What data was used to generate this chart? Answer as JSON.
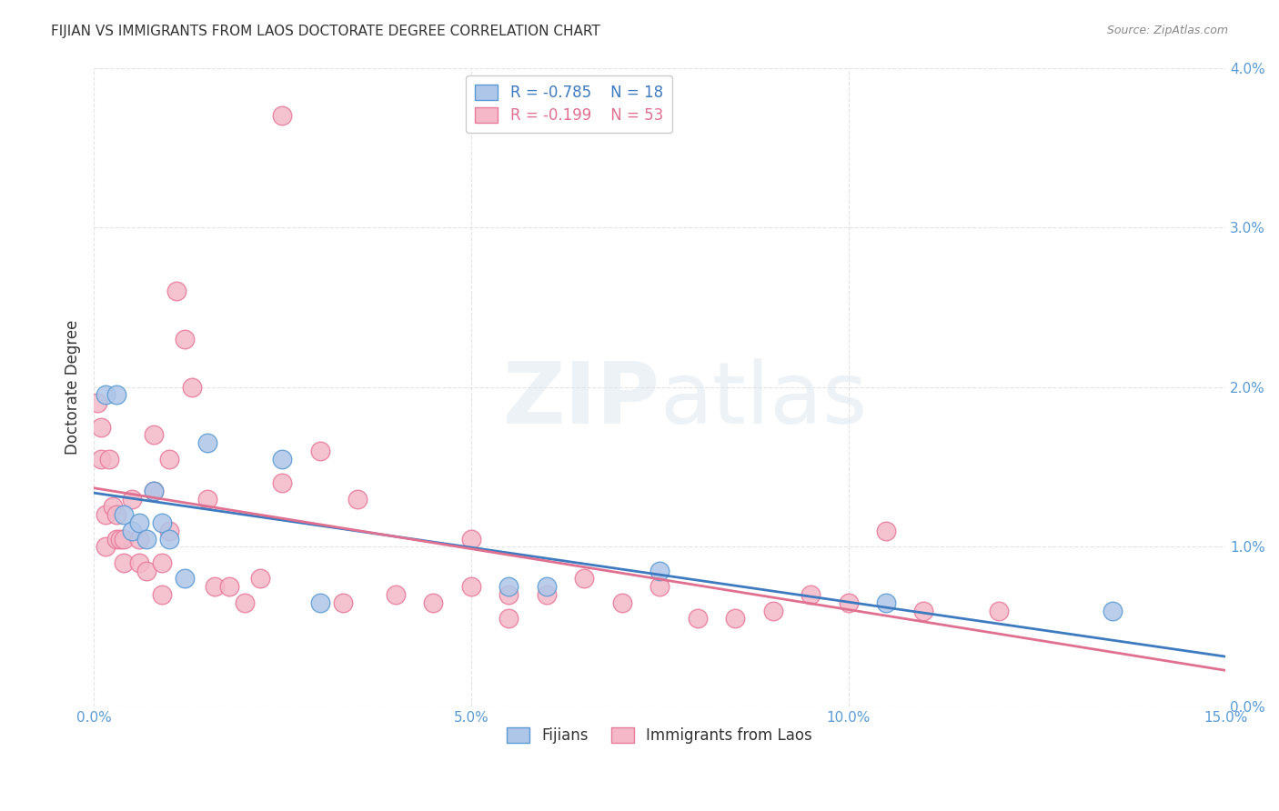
{
  "title": "FIJIAN VS IMMIGRANTS FROM LAOS DOCTORATE DEGREE CORRELATION CHART",
  "source": "Source: ZipAtlas.com",
  "ylabel": "Doctorate Degree",
  "xlabel_vals": [
    0.0,
    5.0,
    10.0,
    15.0
  ],
  "ylabel_vals": [
    0.0,
    1.0,
    2.0,
    3.0,
    4.0
  ],
  "xlim": [
    0.0,
    15.0
  ],
  "ylim": [
    0.0,
    4.0
  ],
  "fijian_color": "#aec6e8",
  "laos_color": "#f4b8c8",
  "fijian_edge": "#5b9bd5",
  "laos_edge": "#e87a9a",
  "fijian_R": -0.785,
  "fijian_N": 18,
  "laos_R": -0.199,
  "laos_N": 53,
  "background_color": "#ffffff",
  "grid_color": "#dddddd",
  "fijian_line_color": "#3d7abf",
  "laos_line_color": "#e07090",
  "fijian_x": [
    0.15,
    0.3,
    0.4,
    0.5,
    0.6,
    0.7,
    0.8,
    0.9,
    1.0,
    1.2,
    1.5,
    2.5,
    3.0,
    5.5,
    6.0,
    7.5,
    10.5,
    13.5
  ],
  "fijian_y": [
    1.95,
    1.95,
    1.2,
    1.1,
    1.15,
    1.05,
    1.35,
    1.15,
    1.05,
    0.8,
    1.65,
    1.55,
    0.65,
    0.75,
    0.75,
    0.85,
    0.65,
    0.6
  ],
  "laos_x": [
    0.05,
    0.1,
    0.1,
    0.15,
    0.15,
    0.2,
    0.25,
    0.3,
    0.3,
    0.35,
    0.4,
    0.4,
    0.5,
    0.6,
    0.6,
    0.7,
    0.8,
    0.8,
    0.9,
    0.9,
    1.0,
    1.0,
    1.1,
    1.2,
    1.3,
    1.5,
    1.6,
    1.8,
    2.0,
    2.2,
    2.5,
    2.5,
    3.0,
    3.3,
    3.5,
    4.0,
    4.5,
    5.0,
    5.0,
    5.5,
    5.5,
    6.0,
    6.5,
    7.0,
    7.5,
    8.0,
    8.5,
    9.0,
    9.5,
    10.0,
    10.5,
    11.0,
    12.0
  ],
  "laos_y": [
    1.9,
    1.75,
    1.55,
    1.2,
    1.0,
    1.55,
    1.25,
    1.2,
    1.05,
    1.05,
    1.05,
    0.9,
    1.3,
    1.05,
    0.9,
    0.85,
    1.7,
    1.35,
    0.9,
    0.7,
    1.55,
    1.1,
    2.6,
    2.3,
    2.0,
    1.3,
    0.75,
    0.75,
    0.65,
    0.8,
    3.7,
    1.4,
    1.6,
    0.65,
    1.3,
    0.7,
    0.65,
    1.05,
    0.75,
    0.7,
    0.55,
    0.7,
    0.8,
    0.65,
    0.75,
    0.55,
    0.55,
    0.6,
    0.7,
    0.65,
    1.1,
    0.6,
    0.6
  ]
}
